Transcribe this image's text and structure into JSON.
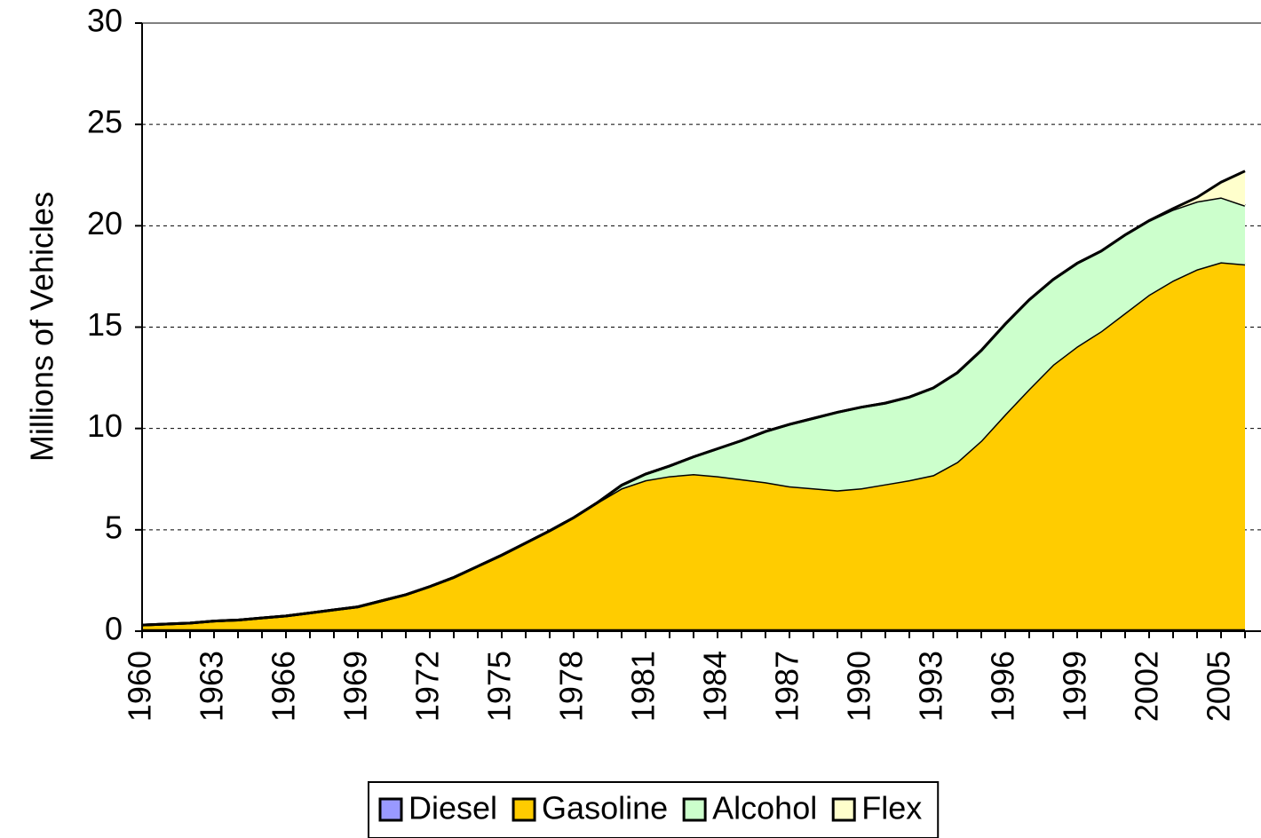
{
  "chart_data": {
    "type": "stacked_area",
    "y_label": "Millions of Vehicles",
    "x": [
      1960,
      1961,
      1962,
      1963,
      1964,
      1965,
      1966,
      1967,
      1968,
      1969,
      1970,
      1971,
      1972,
      1973,
      1974,
      1975,
      1976,
      1977,
      1978,
      1979,
      1980,
      1981,
      1982,
      1983,
      1984,
      1985,
      1986,
      1987,
      1988,
      1989,
      1990,
      1991,
      1992,
      1993,
      1994,
      1995,
      1996,
      1997,
      1998,
      1999,
      2000,
      2001,
      2002,
      2003,
      2004,
      2005,
      2006
    ],
    "xlim": [
      1960,
      2006
    ],
    "xticks": [
      1960,
      1963,
      1966,
      1969,
      1972,
      1975,
      1978,
      1981,
      1984,
      1987,
      1990,
      1993,
      1996,
      1999,
      2002,
      2005
    ],
    "ylim": [
      0,
      30
    ],
    "yticks": [
      0,
      5,
      10,
      15,
      20,
      25,
      30
    ],
    "grid": true,
    "legend": "bottom",
    "series": [
      {
        "name": "Diesel",
        "color": "#9999ff",
        "values": [
          0.1,
          0.1,
          0.1,
          0.1,
          0.1,
          0.1,
          0.1,
          0.1,
          0.1,
          0.1,
          0.1,
          0.1,
          0.1,
          0.1,
          0.1,
          0.1,
          0.1,
          0.1,
          0.1,
          0.1,
          0.1,
          0.1,
          0.1,
          0.1,
          0.1,
          0.1,
          0.1,
          0.1,
          0.1,
          0.1,
          0.1,
          0.1,
          0.1,
          0.1,
          0.1,
          0.1,
          0.1,
          0.1,
          0.1,
          0.1,
          0.1,
          0.1,
          0.1,
          0.1,
          0.1,
          0.1,
          0.1
        ]
      },
      {
        "name": "Gasoline",
        "color": "#ffcc00",
        "values": [
          0.2,
          0.25,
          0.3,
          0.4,
          0.45,
          0.55,
          0.65,
          0.8,
          0.95,
          1.1,
          1.4,
          1.7,
          2.1,
          2.55,
          3.1,
          3.65,
          4.25,
          4.85,
          5.5,
          6.25,
          6.95,
          7.35,
          7.55,
          7.65,
          7.55,
          7.4,
          7.25,
          7.05,
          6.95,
          6.85,
          6.95,
          7.15,
          7.35,
          7.6,
          8.25,
          9.3,
          10.6,
          11.85,
          13.05,
          13.95,
          14.7,
          15.6,
          16.5,
          17.2,
          17.75,
          18.1,
          18.0
        ]
      },
      {
        "name": "Alcohol",
        "color": "#ccffcc",
        "values": [
          0,
          0,
          0,
          0,
          0,
          0,
          0,
          0,
          0,
          0,
          0,
          0,
          0,
          0,
          0,
          0,
          0,
          0,
          0,
          0,
          0.15,
          0.3,
          0.5,
          0.85,
          1.35,
          1.9,
          2.5,
          3.05,
          3.45,
          3.85,
          4.0,
          4.0,
          4.1,
          4.3,
          4.4,
          4.45,
          4.45,
          4.4,
          4.2,
          4.1,
          3.95,
          3.85,
          3.65,
          3.5,
          3.35,
          3.2,
          2.9
        ]
      },
      {
        "name": "Flex",
        "color": "#ffffcc",
        "values": [
          0,
          0,
          0,
          0,
          0,
          0,
          0,
          0,
          0,
          0,
          0,
          0,
          0,
          0,
          0,
          0,
          0,
          0,
          0,
          0,
          0,
          0,
          0,
          0,
          0,
          0,
          0,
          0,
          0,
          0,
          0,
          0,
          0,
          0,
          0,
          0,
          0,
          0,
          0,
          0,
          0,
          0,
          0,
          0.05,
          0.2,
          0.75,
          1.7
        ]
      }
    ]
  }
}
